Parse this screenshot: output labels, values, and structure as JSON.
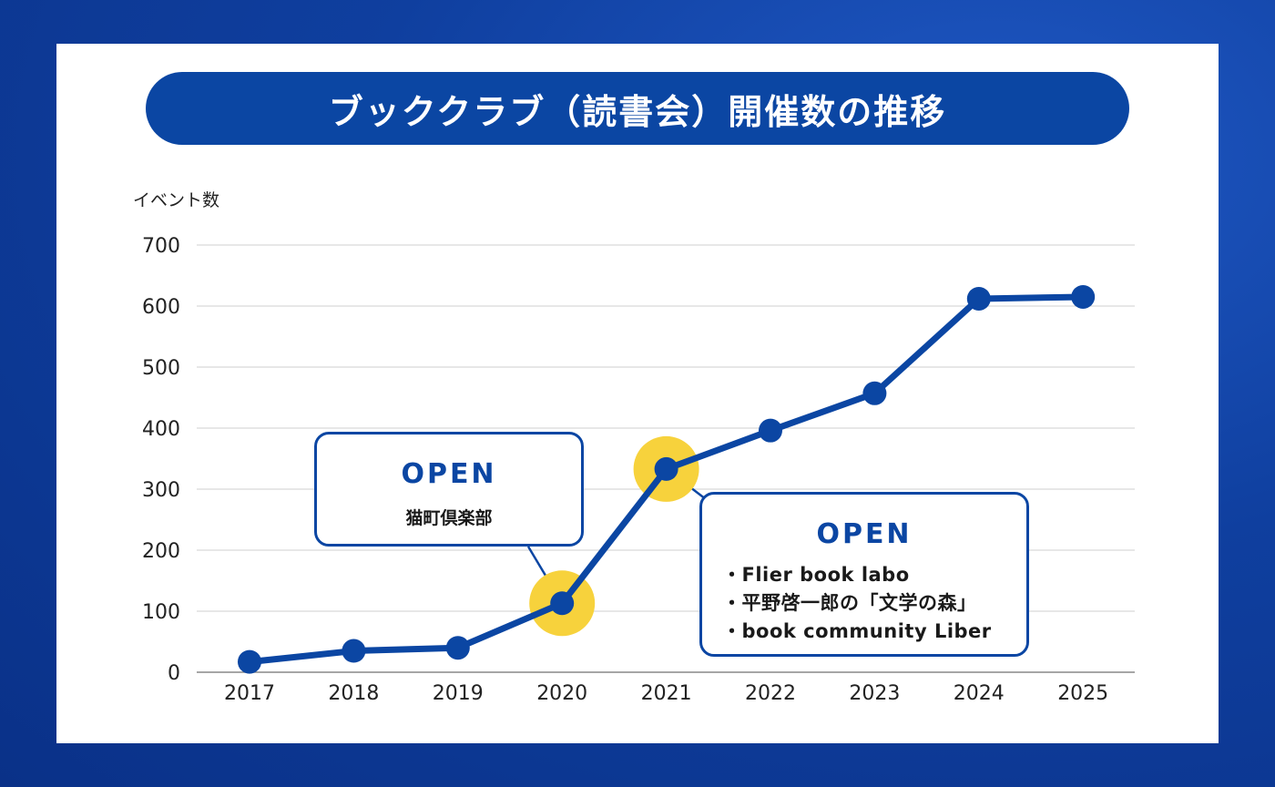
{
  "title": "ブッククラブ（読書会）開催数の推移",
  "colors": {
    "background": "#0f3f9f",
    "accent": "#0b46a3",
    "highlight": "#f7d23c",
    "grid": "#cfcfcf",
    "text": "#222222"
  },
  "chart_data": {
    "type": "line",
    "ylabel": "イベント数",
    "xlabel": "",
    "ylim": [
      0,
      700
    ],
    "yticks": [
      0,
      100,
      200,
      300,
      400,
      500,
      600,
      700
    ],
    "categories": [
      "2017",
      "2018",
      "2019",
      "2020",
      "2021",
      "2022",
      "2023",
      "2024",
      "2025"
    ],
    "values": [
      17,
      35,
      40,
      113,
      333,
      396,
      457,
      612,
      615
    ],
    "grid": true,
    "highlight_points": [
      "2020",
      "2021"
    ]
  },
  "callouts": [
    {
      "year": "2020",
      "heading": "OPEN",
      "items": [
        "猫町倶楽部"
      ]
    },
    {
      "year": "2021",
      "heading": "OPEN",
      "items": [
        "・Flier book labo",
        "・平野啓一郎の「文学の森」",
        "・book community Liber"
      ]
    }
  ]
}
